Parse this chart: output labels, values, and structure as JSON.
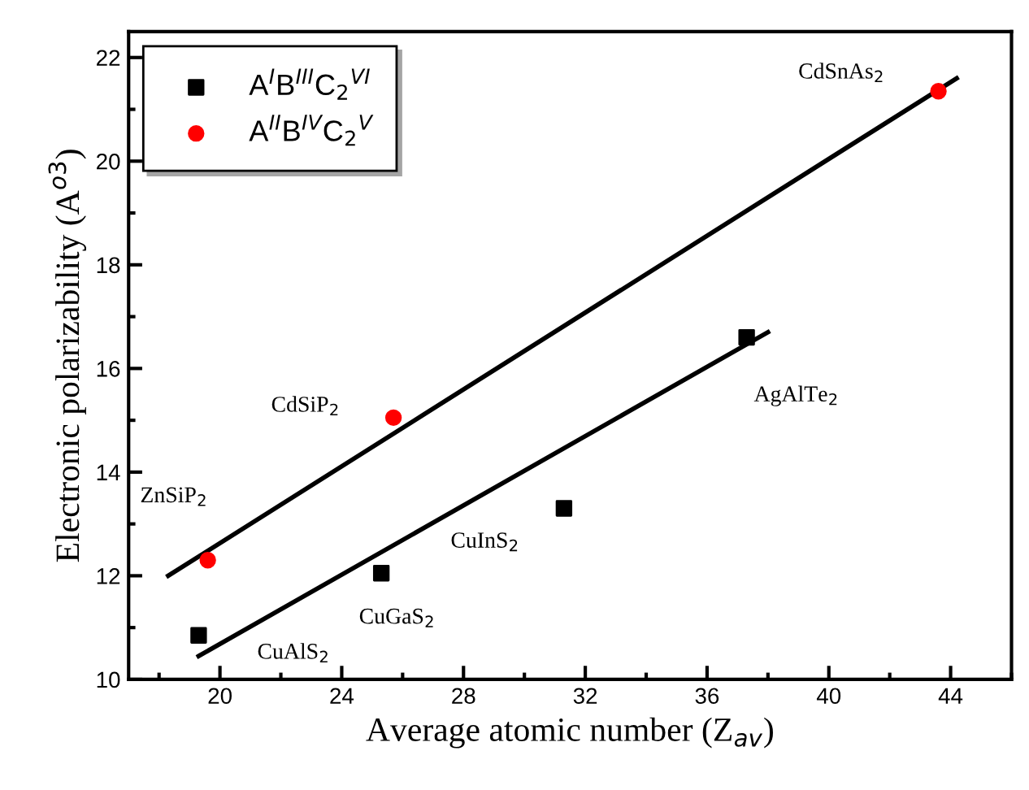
{
  "chart_data": {
    "type": "scatter",
    "xlabel": "Average atomic number (Z$_{av}$)",
    "ylabel": "Electronic polarizability (A$^{o3}$)",
    "series": [
      {
        "name": "A$^{I}$B$^{III}$C$_{2}$$^{VI}$",
        "color": "#000000",
        "marker": "square",
        "x": [
          19.3,
          25.3,
          31.3,
          37.3
        ],
        "values": [
          10.85,
          12.05,
          13.3,
          16.6
        ]
      },
      {
        "name": "A$^{II}$B$^{IV}$C$_{2}$$^{V}$",
        "color": "#ff0000",
        "marker": "circle",
        "x": [
          19.6,
          25.7,
          43.6
        ],
        "values": [
          12.3,
          15.05,
          21.35
        ]
      },
      {
        "type": "line",
        "color": "#000000",
        "marker": "none",
        "x": [
          19.3,
          38.0
        ],
        "values": [
          10.45,
          16.7
        ]
      },
      {
        "type": "line",
        "color": "#000000",
        "marker": "none",
        "x": [
          18.3,
          44.2
        ],
        "values": [
          12.0,
          21.6
        ]
      }
    ],
    "annotations": [
      {
        "text": "CdSnAs$_{2}$",
        "x": 43.6,
        "y": 21.35
      },
      {
        "text": "AgAlTe$_{2}$",
        "x": 37.3,
        "y": 16.6
      },
      {
        "text": "CdSiP$_{2}$",
        "x": 25.7,
        "y": 15.05
      },
      {
        "text": "ZnSiP$_{2}$",
        "x": 19.6,
        "y": 12.3
      },
      {
        "text": "CuInS$_{2}$",
        "x": 31.3,
        "y": 13.3
      },
      {
        "text": "CuGaS$_{2}$",
        "x": 25.3,
        "y": 12.05
      },
      {
        "text": "CuAlS$_{2}$",
        "x": 19.3,
        "y": 10.85
      }
    ],
    "xlim": [
      17,
      46
    ],
    "ylim": [
      10,
      22.5
    ],
    "xticks": [
      20,
      24,
      28,
      32,
      36,
      40,
      44
    ],
    "yticks": [
      10,
      12,
      14,
      16,
      18,
      20,
      22
    ],
    "grid": false,
    "legend": "top left"
  }
}
